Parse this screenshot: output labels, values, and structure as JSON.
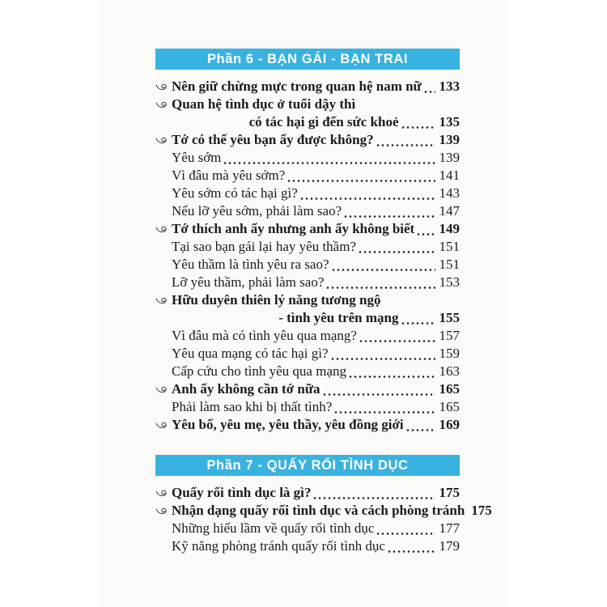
{
  "document": {
    "kind": "book-table-of-contents",
    "colors": {
      "banner_blue": "#38b2e1",
      "banner_text": "#ffffff",
      "body_text": "#1c1c1c",
      "page_bg": "#fcfaf6",
      "canvas_bg": "#ffffff"
    },
    "bullet_icon": "spiral-fleuron-icon",
    "sections": [
      {
        "header": "Phần 6 - BẠN GÁI - BẠN TRAI",
        "entries": [
          {
            "text": "Nên giữ chừng mực trong quan hệ nam nữ",
            "page": "133",
            "style": "main"
          },
          {
            "text": "Quan hệ tình dục ở tuổi dậy thì",
            "page": "",
            "style": "main-nopage"
          },
          {
            "text": "có tác hại gì đến sức khoẻ",
            "page": "135",
            "style": "continuation"
          },
          {
            "text": "Tớ có thể yêu bạn ấy được không?",
            "page": "139",
            "style": "main"
          },
          {
            "text": "Yêu sớm",
            "page": "139",
            "style": "sub"
          },
          {
            "text": "Vì đâu mà yêu sớm?",
            "page": "141",
            "style": "sub"
          },
          {
            "text": "Yêu sớm có tác hại gì?",
            "page": "143",
            "style": "sub"
          },
          {
            "text": "Nếu lỡ yêu sớm, phải làm sao?",
            "page": "147",
            "style": "sub"
          },
          {
            "text": "Tớ thích anh ấy nhưng anh ấy không biết",
            "page": "149",
            "style": "main"
          },
          {
            "text": "Tại sao bạn gái lại hay yêu thầm?",
            "page": "151",
            "style": "sub"
          },
          {
            "text": "Yêu thầm là tình yêu ra sao?",
            "page": "151",
            "style": "sub"
          },
          {
            "text": "Lỡ yêu thầm, phải làm sao?",
            "page": "153",
            "style": "sub"
          },
          {
            "text": "Hữu duyên thiên lý năng tương ngộ",
            "page": "",
            "style": "main-nopage"
          },
          {
            "text": "- tình yêu trên mạng",
            "page": "155",
            "style": "continuation"
          },
          {
            "text": "Vì đâu mà có tình yêu qua mạng?",
            "page": "157",
            "style": "sub"
          },
          {
            "text": "Yêu qua mạng có tác hại gì?",
            "page": "159",
            "style": "sub"
          },
          {
            "text": "Cấp cứu cho tình yêu qua mạng",
            "page": "163",
            "style": "sub"
          },
          {
            "text": "Anh ấy không cần tớ nữa",
            "page": "165",
            "style": "main"
          },
          {
            "text": "Phải làm sao khi bị thất tình?",
            "page": "165",
            "style": "sub"
          },
          {
            "text": "Yêu bố, yêu mẹ, yêu thầy, yêu đồng giới",
            "page": "169",
            "style": "main"
          }
        ]
      },
      {
        "header": "Phần 7 - QUẤY RỐI TÌNH DỤC",
        "entries": [
          {
            "text": "Quấy rối tình dục là gì?",
            "page": "175",
            "style": "main"
          },
          {
            "text": "Nhận dạng quấy rối tình dục và cách phòng tránh",
            "page": "175",
            "style": "main"
          },
          {
            "text": "Những hiểu lầm về quấy rối tình dục",
            "page": "177",
            "style": "sub"
          },
          {
            "text": "Kỹ năng phòng tránh quấy rối tình dục",
            "page": "179",
            "style": "sub"
          }
        ]
      }
    ]
  }
}
